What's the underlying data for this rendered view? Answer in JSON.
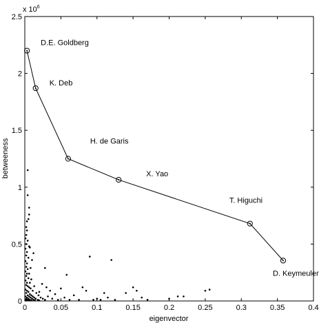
{
  "chart_data": {
    "type": "scatter",
    "title": "",
    "xlabel": "eigenvector",
    "ylabel": "betweeness",
    "y_multiplier_label": "x 10",
    "y_multiplier_exponent": "6",
    "xlim": [
      0,
      0.4
    ],
    "ylim": [
      0,
      2.5
    ],
    "x_ticks": [
      0,
      0.05,
      0.1,
      0.15,
      0.2,
      0.25,
      0.3,
      0.35,
      0.4
    ],
    "x_tick_labels": [
      "0",
      "0.05",
      "0.1",
      "0.15",
      "0.2",
      "0.25",
      "0.3",
      "0.35",
      "0.4"
    ],
    "y_ticks": [
      0,
      0.5,
      1,
      1.5,
      2,
      2.5
    ],
    "y_tick_labels": [
      "0",
      "0.5",
      "1",
      "1.5",
      "2",
      "2.5"
    ],
    "grid": false,
    "highlighted_path": [
      {
        "name": "D.E. Goldberg",
        "x": 0.003,
        "y": 2.2
      },
      {
        "name": "K. Deb",
        "x": 0.015,
        "y": 1.87
      },
      {
        "name": "H. de Garis",
        "x": 0.06,
        "y": 1.25
      },
      {
        "name": "X. Yao",
        "x": 0.13,
        "y": 1.065
      },
      {
        "name": "T. Higuchi",
        "x": 0.312,
        "y": 0.68
      },
      {
        "name": "D. Keymeulen",
        "x": 0.358,
        "y": 0.355
      }
    ],
    "points": [
      {
        "x": 0.004,
        "y": 1.15
      },
      {
        "x": 0.004,
        "y": 0.93
      },
      {
        "x": 0.006,
        "y": 0.82
      },
      {
        "x": 0.006,
        "y": 0.76
      },
      {
        "x": 0.005,
        "y": 0.72
      },
      {
        "x": 0.003,
        "y": 0.7
      },
      {
        "x": 0.002,
        "y": 0.65
      },
      {
        "x": 0.003,
        "y": 0.62
      },
      {
        "x": 0.002,
        "y": 0.58
      },
      {
        "x": 0.001,
        "y": 0.55
      },
      {
        "x": 0.004,
        "y": 0.53
      },
      {
        "x": 0.002,
        "y": 0.5
      },
      {
        "x": 0.006,
        "y": 0.48
      },
      {
        "x": 0.001,
        "y": 0.46
      },
      {
        "x": 0.003,
        "y": 0.43
      },
      {
        "x": 0.002,
        "y": 0.4
      },
      {
        "x": 0.005,
        "y": 0.38
      },
      {
        "x": 0.001,
        "y": 0.35
      },
      {
        "x": 0.003,
        "y": 0.33
      },
      {
        "x": 0.002,
        "y": 0.3
      },
      {
        "x": 0.004,
        "y": 0.28
      },
      {
        "x": 0.001,
        "y": 0.26
      },
      {
        "x": 0.003,
        "y": 0.24
      },
      {
        "x": 0.002,
        "y": 0.22
      },
      {
        "x": 0.005,
        "y": 0.2
      },
      {
        "x": 0.001,
        "y": 0.18
      },
      {
        "x": 0.003,
        "y": 0.16
      },
      {
        "x": 0.002,
        "y": 0.14
      },
      {
        "x": 0.004,
        "y": 0.13
      },
      {
        "x": 0.006,
        "y": 0.12
      },
      {
        "x": 0.001,
        "y": 0.1
      },
      {
        "x": 0.003,
        "y": 0.09
      },
      {
        "x": 0.005,
        "y": 0.08
      },
      {
        "x": 0.002,
        "y": 0.07
      },
      {
        "x": 0.007,
        "y": 0.06
      },
      {
        "x": 0.004,
        "y": 0.05
      },
      {
        "x": 0.009,
        "y": 0.05
      },
      {
        "x": 0.001,
        "y": 0.04
      },
      {
        "x": 0.006,
        "y": 0.04
      },
      {
        "x": 0.011,
        "y": 0.04
      },
      {
        "x": 0.003,
        "y": 0.03
      },
      {
        "x": 0.008,
        "y": 0.03
      },
      {
        "x": 0.013,
        "y": 0.03
      },
      {
        "x": 0.002,
        "y": 0.02
      },
      {
        "x": 0.005,
        "y": 0.02
      },
      {
        "x": 0.01,
        "y": 0.02
      },
      {
        "x": 0.015,
        "y": 0.02
      },
      {
        "x": 0.001,
        "y": 0.01
      },
      {
        "x": 0.004,
        "y": 0.01
      },
      {
        "x": 0.007,
        "y": 0.01
      },
      {
        "x": 0.012,
        "y": 0.01
      },
      {
        "x": 0.018,
        "y": 0.01
      },
      {
        "x": 0.002,
        "y": 0.005
      },
      {
        "x": 0.006,
        "y": 0.005
      },
      {
        "x": 0.009,
        "y": 0.005
      },
      {
        "x": 0.014,
        "y": 0.005
      },
      {
        "x": 0.02,
        "y": 0.005
      },
      {
        "x": 0.016,
        "y": 0.07
      },
      {
        "x": 0.019,
        "y": 0.05
      },
      {
        "x": 0.022,
        "y": 0.03
      },
      {
        "x": 0.025,
        "y": 0.02
      },
      {
        "x": 0.028,
        "y": 0.01
      },
      {
        "x": 0.011,
        "y": 0.09
      },
      {
        "x": 0.008,
        "y": 0.11
      },
      {
        "x": 0.013,
        "y": 0.13
      },
      {
        "x": 0.007,
        "y": 0.16
      },
      {
        "x": 0.009,
        "y": 0.19
      },
      {
        "x": 0.006,
        "y": 0.24
      },
      {
        "x": 0.008,
        "y": 0.29
      },
      {
        "x": 0.01,
        "y": 0.36
      },
      {
        "x": 0.012,
        "y": 0.42
      },
      {
        "x": 0.007,
        "y": 0.47
      },
      {
        "x": 0.028,
        "y": 0.29
      },
      {
        "x": 0.02,
        "y": 0.08
      },
      {
        "x": 0.024,
        "y": 0.15
      },
      {
        "x": 0.03,
        "y": 0.12
      },
      {
        "x": 0.032,
        "y": 0.04
      },
      {
        "x": 0.035,
        "y": 0.09
      },
      {
        "x": 0.038,
        "y": 0.02
      },
      {
        "x": 0.042,
        "y": 0.06
      },
      {
        "x": 0.046,
        "y": 0.01
      },
      {
        "x": 0.05,
        "y": 0.11
      },
      {
        "x": 0.055,
        "y": 0.03
      },
      {
        "x": 0.058,
        "y": 0.23
      },
      {
        "x": 0.062,
        "y": 0.01
      },
      {
        "x": 0.068,
        "y": 0.05
      },
      {
        "x": 0.075,
        "y": 0.01
      },
      {
        "x": 0.08,
        "y": 0.12
      },
      {
        "x": 0.085,
        "y": 0.09
      },
      {
        "x": 0.09,
        "y": 0.39
      },
      {
        "x": 0.095,
        "y": 0.01
      },
      {
        "x": 0.1,
        "y": 0.02
      },
      {
        "x": 0.105,
        "y": 0.01
      },
      {
        "x": 0.11,
        "y": 0.07
      },
      {
        "x": 0.115,
        "y": 0.03
      },
      {
        "x": 0.12,
        "y": 0.36
      },
      {
        "x": 0.125,
        "y": 0.01
      },
      {
        "x": 0.14,
        "y": 0.07
      },
      {
        "x": 0.15,
        "y": 0.12
      },
      {
        "x": 0.155,
        "y": 0.09
      },
      {
        "x": 0.162,
        "y": 0.03
      },
      {
        "x": 0.17,
        "y": 0.01
      },
      {
        "x": 0.2,
        "y": 0.02
      },
      {
        "x": 0.212,
        "y": 0.04
      },
      {
        "x": 0.22,
        "y": 0.04
      },
      {
        "x": 0.25,
        "y": 0.09
      },
      {
        "x": 0.256,
        "y": 0.1
      }
    ]
  }
}
